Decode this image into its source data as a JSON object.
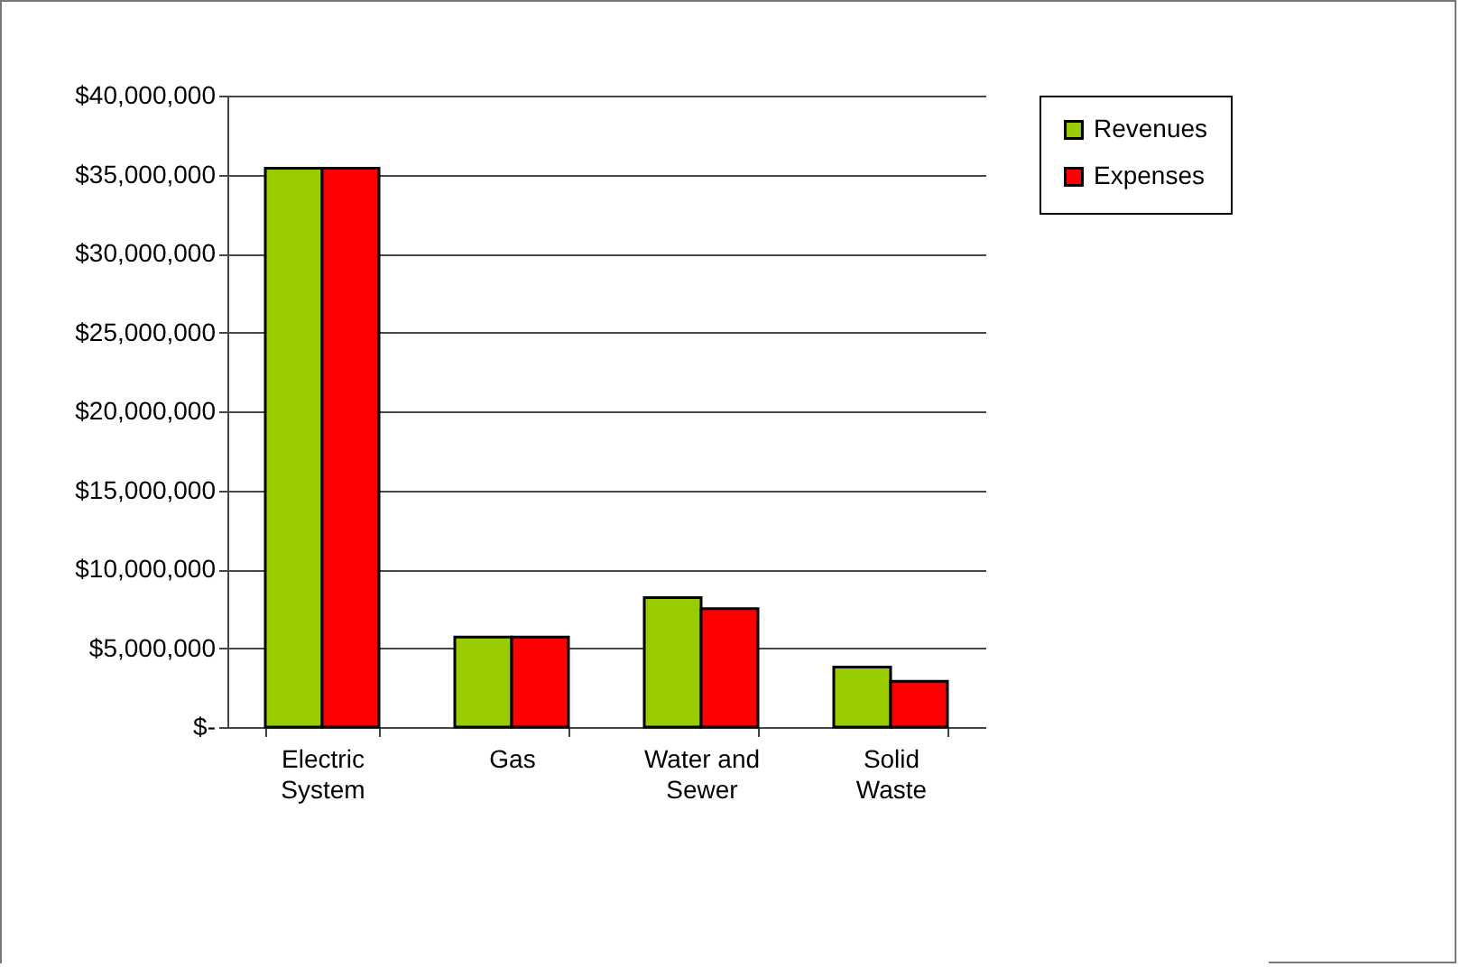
{
  "chart_data": {
    "type": "bar",
    "categories": [
      "Electric System",
      "Gas",
      "Water and Sewer",
      "Solid Waste"
    ],
    "series": [
      {
        "name": "Revenues",
        "color": "#99cc00",
        "values": [
          35400000,
          5700000,
          8200000,
          3800000
        ]
      },
      {
        "name": "Expenses",
        "color": "#ff0000",
        "values": [
          35400000,
          5700000,
          7500000,
          2900000
        ]
      }
    ],
    "ylim": [
      0,
      40000000
    ],
    "yticks": [
      {
        "value": 0,
        "label": "$-"
      },
      {
        "value": 5000000,
        "label": "$5,000,000"
      },
      {
        "value": 10000000,
        "label": "$10,000,000"
      },
      {
        "value": 15000000,
        "label": "$15,000,000"
      },
      {
        "value": 20000000,
        "label": "$20,000,000"
      },
      {
        "value": 25000000,
        "label": "$25,000,000"
      },
      {
        "value": 30000000,
        "label": "$30,000,000"
      },
      {
        "value": 35000000,
        "label": "$35,000,000"
      },
      {
        "value": 40000000,
        "label": "$40,000,000"
      }
    ],
    "grid": "y",
    "legend": "right"
  }
}
